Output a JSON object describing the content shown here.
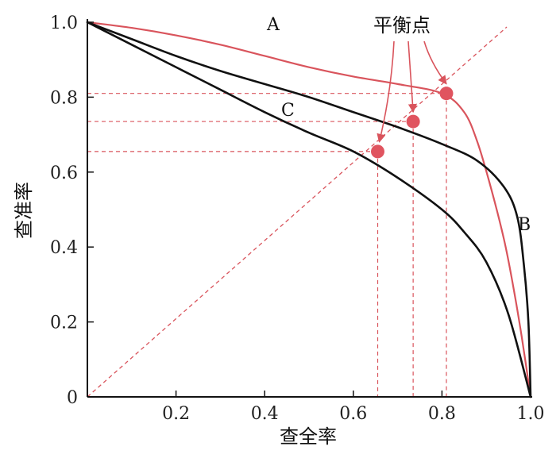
{
  "chart_data": {
    "type": "line",
    "title": "",
    "xlabel": "查全率",
    "ylabel": "查准率",
    "xlim": [
      0,
      1.0
    ],
    "ylim": [
      0,
      1.0
    ],
    "x_tick_labels": [
      "0.2",
      "0.4",
      "0.6",
      "0.8",
      "1.0"
    ],
    "x_ticks": [
      0.2,
      0.4,
      0.6,
      0.8,
      1.0
    ],
    "y_tick_labels": [
      "0",
      "0.2",
      "0.4",
      "0.6",
      "0.8",
      "1.0"
    ],
    "y_ticks": [
      0,
      0.2,
      0.4,
      0.6,
      0.8,
      1.0
    ],
    "grid": false,
    "series": [
      {
        "name": "A",
        "color": "#d9545c",
        "points": [
          [
            0.0,
            1.0
          ],
          [
            0.1,
            0.985
          ],
          [
            0.2,
            0.965
          ],
          [
            0.3,
            0.94
          ],
          [
            0.4,
            0.91
          ],
          [
            0.5,
            0.88
          ],
          [
            0.6,
            0.855
          ],
          [
            0.7,
            0.835
          ],
          [
            0.8,
            0.81
          ],
          [
            0.85,
            0.76
          ],
          [
            0.88,
            0.68
          ],
          [
            0.91,
            0.56
          ],
          [
            0.94,
            0.42
          ],
          [
            0.96,
            0.3
          ],
          [
            0.98,
            0.16
          ],
          [
            1.0,
            0.0
          ]
        ]
      },
      {
        "name": "B",
        "color": "#111111",
        "points": [
          [
            0.0,
            1.0
          ],
          [
            0.1,
            0.955
          ],
          [
            0.2,
            0.91
          ],
          [
            0.3,
            0.87
          ],
          [
            0.4,
            0.835
          ],
          [
            0.5,
            0.8
          ],
          [
            0.6,
            0.76
          ],
          [
            0.7,
            0.72
          ],
          [
            0.8,
            0.675
          ],
          [
            0.88,
            0.63
          ],
          [
            0.94,
            0.56
          ],
          [
            0.97,
            0.48
          ],
          [
            0.985,
            0.35
          ],
          [
            0.995,
            0.2
          ],
          [
            1.0,
            0.0
          ]
        ]
      },
      {
        "name": "C",
        "color": "#111111",
        "points": [
          [
            0.0,
            1.0
          ],
          [
            0.1,
            0.94
          ],
          [
            0.2,
            0.88
          ],
          [
            0.3,
            0.82
          ],
          [
            0.4,
            0.76
          ],
          [
            0.5,
            0.705
          ],
          [
            0.6,
            0.655
          ],
          [
            0.7,
            0.585
          ],
          [
            0.8,
            0.5
          ],
          [
            0.85,
            0.44
          ],
          [
            0.9,
            0.36
          ],
          [
            0.95,
            0.22
          ],
          [
            1.0,
            0.0
          ]
        ]
      }
    ],
    "diagonal": {
      "points": [
        [
          0.0,
          0.0
        ],
        [
          1.0,
          1.0
        ]
      ],
      "color": "#d9545c",
      "style": "dashed"
    },
    "break_even_points": [
      {
        "x": 0.81,
        "y": 0.81,
        "curve": "A"
      },
      {
        "x": 0.735,
        "y": 0.735,
        "curve": "B"
      },
      {
        "x": 0.655,
        "y": 0.655,
        "curve": "C"
      }
    ],
    "annotation": "平衡点",
    "curve_labels": [
      "A",
      "B",
      "C"
    ]
  }
}
